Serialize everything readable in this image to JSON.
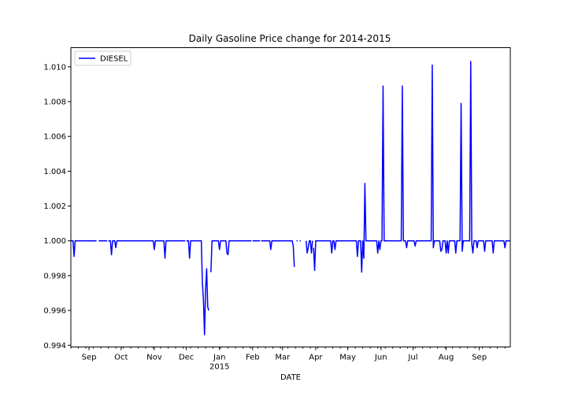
{
  "chart_data": {
    "type": "line",
    "title": "Daily Gasoline Price change for 2014-2015",
    "xlabel": "DATE",
    "ylabel": "",
    "ylim": [
      0.9939,
      1.0111
    ],
    "xlim": [
      "2014-08-15",
      "2015-09-30"
    ],
    "yticks": [
      "0.994",
      "0.996",
      "0.998",
      "1.000",
      "1.002",
      "1.004",
      "1.006",
      "1.008",
      "1.010"
    ],
    "xticks": [
      {
        "date": "2014-09-01",
        "label": "Sep",
        "sub": ""
      },
      {
        "date": "2014-10-01",
        "label": "Oct",
        "sub": ""
      },
      {
        "date": "2014-11-01",
        "label": "Nov",
        "sub": ""
      },
      {
        "date": "2014-12-01",
        "label": "Dec",
        "sub": ""
      },
      {
        "date": "2015-01-01",
        "label": "Jan",
        "sub": "2015"
      },
      {
        "date": "2015-02-01",
        "label": "Feb",
        "sub": ""
      },
      {
        "date": "2015-03-01",
        "label": "Mar",
        "sub": ""
      },
      {
        "date": "2015-04-01",
        "label": "Apr",
        "sub": ""
      },
      {
        "date": "2015-05-01",
        "label": "May",
        "sub": ""
      },
      {
        "date": "2015-06-01",
        "label": "Jun",
        "sub": ""
      },
      {
        "date": "2015-07-01",
        "label": "Jul",
        "sub": ""
      },
      {
        "date": "2015-08-01",
        "label": "Aug",
        "sub": ""
      },
      {
        "date": "2015-09-01",
        "label": "Sep",
        "sub": ""
      }
    ],
    "legend": "top-left",
    "grid": false,
    "series": [
      {
        "name": "DIESEL",
        "color": "#0000ff",
        "segments": [
          [
            [
              "2014-08-15",
              1.0
            ],
            [
              "2014-08-17",
              1.0
            ],
            [
              "2014-08-18",
              0.9991
            ],
            [
              "2014-08-19",
              1.0
            ],
            [
              "2014-08-20",
              1.0
            ],
            [
              "2014-09-08",
              1.0
            ]
          ],
          [
            [
              "2014-09-10",
              1.0
            ],
            [
              "2014-09-18",
              1.0
            ]
          ],
          [
            [
              "2014-09-19",
              1.0
            ],
            [
              "2014-09-21",
              1.0
            ],
            [
              "2014-09-22",
              0.9992
            ],
            [
              "2014-09-23",
              1.0
            ],
            [
              "2014-09-25",
              1.0
            ],
            [
              "2014-09-26",
              0.9996
            ],
            [
              "2014-09-27",
              1.0
            ],
            [
              "2014-10-31",
              1.0
            ],
            [
              "2014-11-01",
              0.9995
            ],
            [
              "2014-11-02",
              1.0
            ],
            [
              "2014-11-10",
              1.0
            ],
            [
              "2014-11-11",
              0.999
            ],
            [
              "2014-11-12",
              1.0
            ],
            [
              "2014-11-30",
              1.0
            ]
          ],
          [
            [
              "2014-12-01",
              1.0
            ],
            [
              "2014-12-03",
              1.0
            ],
            [
              "2014-12-04",
              0.999
            ],
            [
              "2014-12-05",
              1.0
            ],
            [
              "2014-12-15",
              1.0
            ],
            [
              "2014-12-16",
              0.9976
            ],
            [
              "2014-12-17",
              0.9966
            ],
            [
              "2014-12-18",
              0.9946
            ],
            [
              "2014-12-19",
              0.9972
            ],
            [
              "2014-12-20",
              0.9984
            ],
            [
              "2014-12-21",
              0.9962
            ],
            [
              "2014-12-22",
              0.996
            ]
          ],
          [
            [
              "2014-12-24",
              0.9982
            ],
            [
              "2014-12-25",
              1.0
            ],
            [
              "2014-12-31",
              1.0
            ],
            [
              "2015-01-01",
              0.9995
            ],
            [
              "2015-01-02",
              1.0
            ],
            [
              "2015-01-07",
              1.0
            ],
            [
              "2015-01-08",
              0.9993
            ],
            [
              "2015-01-09",
              0.9992
            ],
            [
              "2015-01-10",
              1.0
            ],
            [
              "2015-01-31",
              1.0
            ]
          ],
          [
            [
              "2015-02-01",
              1.0
            ],
            [
              "2015-02-08",
              1.0
            ]
          ],
          [
            [
              "2015-02-09",
              1.0
            ],
            [
              "2015-02-17",
              1.0
            ],
            [
              "2015-02-18",
              0.9995
            ],
            [
              "2015-02-19",
              1.0
            ],
            [
              "2015-03-10",
              1.0
            ],
            [
              "2015-03-11",
              0.9997
            ],
            [
              "2015-03-12",
              0.9985
            ]
          ],
          [
            [
              "2015-03-14",
              1.0
            ],
            [
              "2015-03-15",
              1.0
            ]
          ],
          [
            [
              "2015-03-17",
              1.0
            ],
            [
              "2015-03-18",
              1.0
            ]
          ],
          [
            [
              "2015-03-23",
              1.0
            ],
            [
              "2015-03-24",
              0.9993
            ],
            [
              "2015-03-25",
              0.9996
            ],
            [
              "2015-03-26",
              1.0
            ],
            [
              "2015-03-27",
              1.0
            ],
            [
              "2015-03-28",
              0.9993
            ],
            [
              "2015-03-29",
              1.0
            ]
          ],
          [
            [
              "2015-03-30",
              0.9996
            ],
            [
              "2015-03-31",
              0.9983
            ],
            [
              "2015-04-01",
              1.0
            ],
            [
              "2015-04-15",
              1.0
            ],
            [
              "2015-04-16",
              0.9993
            ],
            [
              "2015-04-17",
              1.0
            ],
            [
              "2015-04-18",
              1.0
            ],
            [
              "2015-04-19",
              0.9995
            ],
            [
              "2015-04-20",
              1.0
            ],
            [
              "2015-05-09",
              1.0
            ],
            [
              "2015-05-10",
              0.9991
            ],
            [
              "2015-05-11",
              1.0
            ],
            [
              "2015-05-13",
              1.0
            ],
            [
              "2015-05-14",
              0.9982
            ],
            [
              "2015-05-15",
              1.0
            ],
            [
              "2015-05-16",
              0.999
            ],
            [
              "2015-05-17",
              1.0033
            ],
            [
              "2015-05-18",
              1.0
            ],
            [
              "2015-05-28",
              1.0
            ],
            [
              "2015-05-29",
              0.9993
            ],
            [
              "2015-05-30",
              1.0
            ],
            [
              "2015-05-31",
              0.9995
            ],
            [
              "2015-06-01",
              1.0
            ],
            [
              "2015-06-02",
              1.0
            ],
            [
              "2015-06-03",
              1.0089
            ],
            [
              "2015-06-04",
              1.0
            ],
            [
              "2015-06-20",
              1.0
            ],
            [
              "2015-06-21",
              1.0089
            ],
            [
              "2015-06-22",
              1.0
            ],
            [
              "2015-06-24",
              1.0
            ],
            [
              "2015-06-25",
              0.9996
            ],
            [
              "2015-06-26",
              1.0
            ],
            [
              "2015-07-02",
              1.0
            ],
            [
              "2015-07-03",
              0.9997
            ],
            [
              "2015-07-04",
              1.0
            ],
            [
              "2015-07-18",
              1.0
            ],
            [
              "2015-07-19",
              1.0101
            ],
            [
              "2015-07-20",
              0.9996
            ],
            [
              "2015-07-21",
              1.0
            ],
            [
              "2015-07-26",
              1.0
            ],
            [
              "2015-07-27",
              0.9994
            ],
            [
              "2015-07-28",
              0.9995
            ],
            [
              "2015-07-29",
              1.0
            ],
            [
              "2015-07-31",
              1.0
            ],
            [
              "2015-08-01",
              0.9993
            ],
            [
              "2015-08-02",
              1.0
            ],
            [
              "2015-08-03",
              0.9993
            ],
            [
              "2015-08-04",
              1.0
            ],
            [
              "2015-08-09",
              1.0
            ],
            [
              "2015-08-10",
              0.9993
            ],
            [
              "2015-08-11",
              1.0
            ],
            [
              "2015-08-14",
              1.0
            ],
            [
              "2015-08-15",
              1.0079
            ],
            [
              "2015-08-16",
              0.9994
            ],
            [
              "2015-08-17",
              1.0
            ],
            [
              "2015-08-23",
              1.0
            ],
            [
              "2015-08-24",
              1.0103
            ],
            [
              "2015-08-25",
              0.9998
            ],
            [
              "2015-08-26",
              0.9993
            ],
            [
              "2015-08-27",
              1.0
            ],
            [
              "2015-08-29",
              1.0
            ],
            [
              "2015-08-30",
              0.9996
            ],
            [
              "2015-08-31",
              1.0
            ],
            [
              "2015-09-05",
              1.0
            ],
            [
              "2015-09-06",
              0.9994
            ],
            [
              "2015-09-07",
              1.0
            ],
            [
              "2015-09-13",
              1.0
            ],
            [
              "2015-09-14",
              0.9993
            ],
            [
              "2015-09-15",
              1.0
            ],
            [
              "2015-09-24",
              1.0
            ],
            [
              "2015-09-25",
              0.9996
            ],
            [
              "2015-09-26",
              1.0
            ],
            [
              "2015-09-30",
              1.0
            ]
          ]
        ]
      }
    ]
  }
}
